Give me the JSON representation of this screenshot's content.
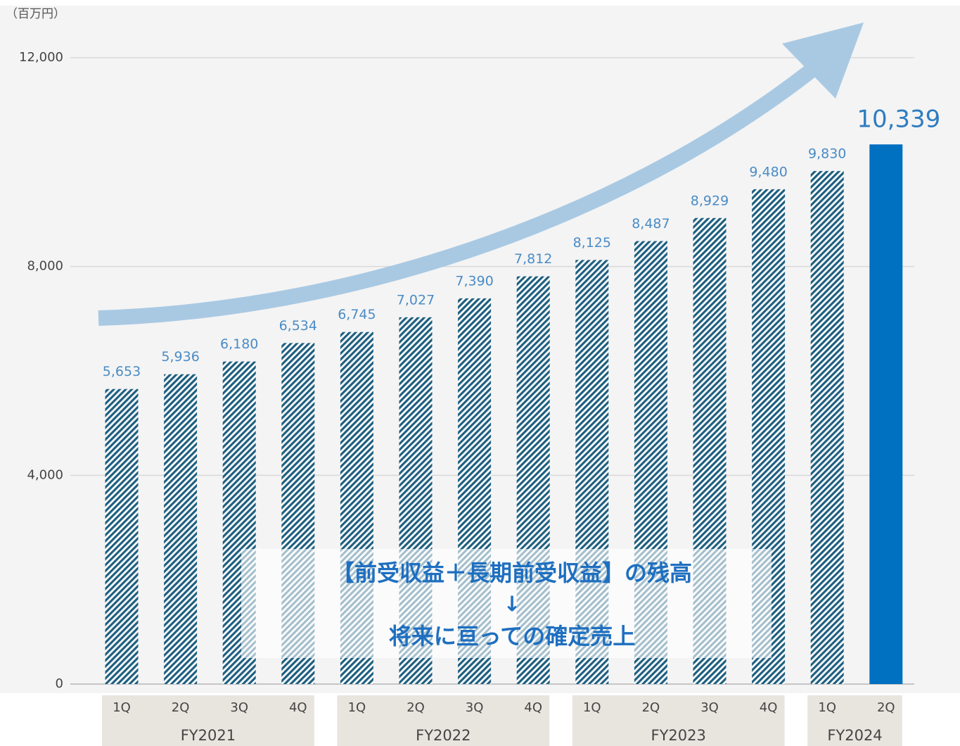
{
  "chart_data": {
    "type": "bar",
    "unit_label": "（百万円）",
    "groups": [
      {
        "name": "FY2021",
        "categories": [
          "1Q",
          "2Q",
          "3Q",
          "4Q"
        ]
      },
      {
        "name": "FY2022",
        "categories": [
          "1Q",
          "2Q",
          "3Q",
          "4Q"
        ]
      },
      {
        "name": "FY2023",
        "categories": [
          "1Q",
          "2Q",
          "3Q",
          "4Q"
        ]
      },
      {
        "name": "FY2024",
        "categories": [
          "1Q",
          "2Q"
        ]
      }
    ],
    "values": [
      5653,
      5936,
      6180,
      6534,
      6745,
      7027,
      7390,
      7812,
      8125,
      8487,
      8929,
      9480,
      9830,
      10339
    ],
    "value_labels": [
      "5,653",
      "5,936",
      "6,180",
      "6,534",
      "6,745",
      "7,027",
      "7,390",
      "7,812",
      "8,125",
      "8,487",
      "8,929",
      "9,480",
      "9,830",
      "10,339"
    ],
    "color": "#1f5f80",
    "highlight_color": "#0070c0",
    "highlight_index": 13,
    "ylim": [
      0,
      12000
    ],
    "yticks": [
      0,
      {
        "value": 4000,
        "label": "4,000"
      },
      {
        "value": 8000,
        "label": "8,000"
      },
      {
        "value": 12000,
        "label": "12,000"
      }
    ],
    "grid": true,
    "annotation": [
      "【前受収益＋長期前受収益】の残高",
      "↓",
      "将来に亘っての確定売上"
    ]
  }
}
